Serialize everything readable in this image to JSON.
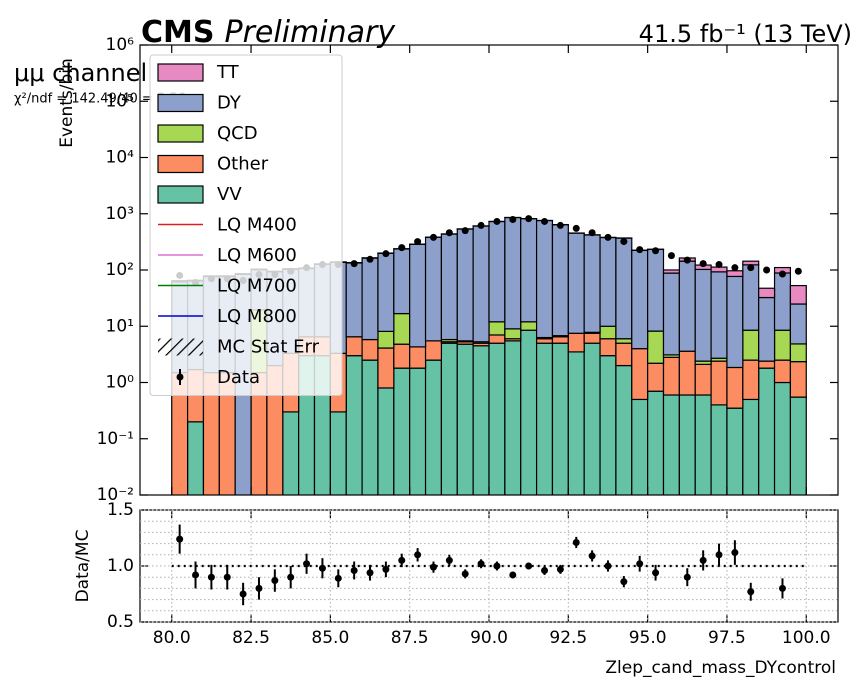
{
  "chart_data": [
    {
      "type": "histogram",
      "stacked": true,
      "log_y": true,
      "title": "CMS",
      "subtitle": "Preliminary",
      "lumi": "41.5 fb⁻¹ (13 TeV)",
      "channel": "μμ channel",
      "annotation": "χ²/ndf = 142.49/40 = 3.56",
      "ylabel": "Events/bin",
      "legend": "upper left",
      "xlim": [
        79,
        101
      ],
      "ylim": [
        0.01,
        1000000
      ],
      "yticks": [
        {
          "value": 0.01,
          "label": "10⁻²"
        },
        {
          "value": 0.1,
          "label": "10⁻¹"
        },
        {
          "value": 1,
          "label": "10⁰"
        },
        {
          "value": 10,
          "label": "10¹"
        },
        {
          "value": 100,
          "label": "10²"
        },
        {
          "value": 1000,
          "label": "10³"
        },
        {
          "value": 10000,
          "label": "10⁴"
        },
        {
          "value": 100000,
          "label": "10⁵"
        },
        {
          "value": 1000000,
          "label": "10⁶"
        }
      ],
      "bins": [
        80,
        80.5,
        81,
        81.5,
        82,
        82.5,
        83,
        83.5,
        84,
        84.5,
        85,
        85.5,
        86,
        86.5,
        87,
        87.5,
        88,
        88.5,
        89,
        89.5,
        90,
        90.5,
        91,
        91.5,
        92,
        92.5,
        93,
        93.5,
        94,
        94.5,
        95,
        95.5,
        96,
        96.5,
        97,
        97.5,
        98,
        98.5,
        99,
        99.5,
        100
      ],
      "series": [
        {
          "name": "VV",
          "color": "#66c2a5",
          "values": [
            0,
            0.2,
            0,
            0,
            0,
            0,
            0,
            0.3,
            3,
            3,
            0.3,
            3,
            2.5,
            0.8,
            1.8,
            1.8,
            2.5,
            5,
            4.8,
            4.5,
            5,
            5.5,
            8.5,
            5,
            5,
            3.5,
            5,
            3,
            2,
            0.5,
            0.7,
            0.6,
            0.6,
            0.6,
            0.4,
            0.35,
            0.5,
            1.8,
            1,
            0.55
          ]
        },
        {
          "name": "Other",
          "color": "#fc8d62",
          "values": [
            1.5,
            1.5,
            1.5,
            1.5,
            0,
            1.5,
            2,
            3,
            3.5,
            3.5,
            3,
            3.5,
            3.3,
            3.3,
            3,
            2.5,
            3,
            0.3,
            0.5,
            0.5,
            2,
            0.5,
            0,
            1,
            1.5,
            4,
            2.5,
            3,
            3,
            3.5,
            1.5,
            2.2,
            3,
            1.5,
            2,
            1.5,
            2,
            0.6,
            1.5,
            1.8
          ]
        },
        {
          "name": "QCD",
          "color": "#a6d854",
          "values": [
            0,
            0,
            0,
            0,
            0,
            18,
            0,
            0,
            0,
            0,
            0,
            0,
            0,
            4,
            12,
            0,
            0,
            0.5,
            0.2,
            0.3,
            5,
            3,
            3.5,
            0.3,
            0.3,
            0,
            0.3,
            4,
            1,
            0,
            6,
            0.3,
            0,
            0.3,
            0.3,
            0,
            6,
            0,
            6,
            2.5
          ]
        },
        {
          "name": "DY",
          "color": "#8da0cb",
          "values": [
            60,
            62,
            75,
            75,
            84,
            82,
            91,
            100,
            100,
            120,
            134,
            127,
            157,
            190,
            220,
            282,
            376,
            430,
            530,
            600,
            716,
            847,
            806,
            751,
            631,
            445,
            412,
            368,
            363,
            219,
            224,
            85,
            140,
            100,
            90,
            75,
            115,
            30,
            80,
            20
          ]
        },
        {
          "name": "TT",
          "color": "#e78ac3",
          "values": [
            3,
            2,
            2,
            2,
            2,
            2,
            2,
            2,
            2,
            2,
            2,
            2,
            2,
            2,
            2,
            2,
            2,
            2,
            2,
            2,
            2,
            2,
            2,
            2,
            2,
            2,
            2,
            2,
            2,
            2,
            2,
            12,
            20,
            20,
            20,
            20,
            20,
            15,
            22,
            28
          ]
        }
      ],
      "signals": [
        {
          "name": "LQ M400",
          "color": "#e41a1c"
        },
        {
          "name": "LQ M600",
          "color": "#da70d6"
        },
        {
          "name": "LQ M700",
          "color": "#008000"
        },
        {
          "name": "LQ M800",
          "color": "#0000cd"
        }
      ],
      "stat_err_label": "MC Stat Err",
      "data": {
        "name": "Data",
        "color": "#000000",
        "values": [
          80,
          60,
          70,
          70,
          65,
          83,
          83,
          95,
          110,
          125,
          125,
          130,
          155,
          195,
          250,
          320,
          380,
          460,
          500,
          620,
          730,
          790,
          820,
          730,
          620,
          550,
          460,
          380,
          320,
          230,
          220,
          180,
          150,
          130,
          125,
          110,
          110,
          100,
          85,
          95
        ]
      }
    },
    {
      "type": "errorbar",
      "xlabel": "Zlep_cand_mass_DYcontrol",
      "ylabel": "Data/MC",
      "grid": true,
      "reference": 1,
      "xlim": [
        79,
        101
      ],
      "ylim": [
        0.5,
        1.5
      ],
      "xticks": [
        {
          "value": 80,
          "label": "80.0"
        },
        82.5,
        {
          "value": 85,
          "label": "85.0"
        },
        87.5,
        {
          "value": 90,
          "label": "90.0"
        },
        92.5,
        {
          "value": 95,
          "label": "95.0"
        },
        97.5,
        {
          "value": 100,
          "label": "100.0"
        }
      ],
      "yticks": [
        0.5,
        {
          "value": 1,
          "label": "1.0"
        },
        1.5
      ],
      "y_minor_ticks": [
        0.6,
        0.7,
        0.8,
        0.9,
        1.1,
        1.2,
        1.3,
        1.4
      ],
      "values": [
        1.24,
        0.92,
        0.9,
        0.9,
        0.75,
        0.8,
        0.87,
        0.9,
        1.02,
        0.98,
        0.89,
        0.96,
        0.94,
        0.97,
        1.05,
        1.1,
        0.99,
        1.05,
        0.93,
        1.02,
        1.0,
        0.92,
        1.0,
        0.96,
        0.97,
        1.21,
        1.09,
        1.0,
        0.86,
        1.02,
        0.94,
        null,
        0.9,
        1.05,
        1.1,
        1.12,
        0.77,
        null,
        0.8,
        null
      ],
      "errors": [
        0.13,
        0.12,
        0.11,
        0.11,
        0.1,
        0.1,
        0.1,
        0.1,
        0.09,
        0.09,
        0.08,
        0.08,
        0.07,
        0.07,
        0.06,
        0.06,
        0.05,
        0.05,
        0.04,
        0.04,
        0.04,
        0.03,
        0.03,
        0.04,
        0.04,
        0.05,
        0.05,
        0.05,
        0.05,
        0.07,
        0.07,
        null,
        0.08,
        0.09,
        0.1,
        0.11,
        0.08,
        null,
        0.09,
        null
      ]
    }
  ]
}
